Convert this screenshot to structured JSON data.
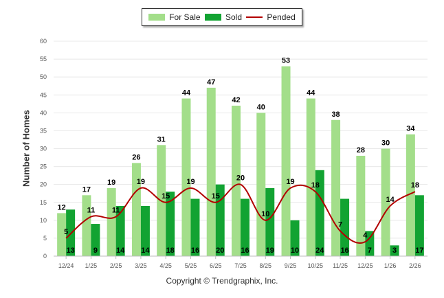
{
  "legend": {
    "for_sale": "For Sale",
    "sold": "Sold",
    "pended": "Pended"
  },
  "footer": "Copyright © Trendgraphix, Inc.",
  "colors": {
    "for_sale": "#a3de8a",
    "sold": "#12a332",
    "pended": "#b20000",
    "grid": "#e8e8e8"
  },
  "chart_data": {
    "type": "bar",
    "ylabel": "Number of Homes",
    "ylim": [
      0,
      60
    ],
    "yticks": [
      0,
      5,
      10,
      15,
      20,
      25,
      30,
      35,
      40,
      45,
      50,
      55,
      60
    ],
    "categories": [
      "12/24",
      "1/25",
      "2/25",
      "3/25",
      "4/25",
      "5/25",
      "6/25",
      "7/25",
      "8/25",
      "9/25",
      "10/25",
      "11/25",
      "12/25",
      "1/26",
      "2/26"
    ],
    "series": [
      {
        "name": "For Sale",
        "type": "bar",
        "values": [
          12,
          17,
          19,
          26,
          31,
          44,
          47,
          42,
          40,
          53,
          44,
          38,
          28,
          30,
          34
        ]
      },
      {
        "name": "Sold",
        "type": "bar",
        "values": [
          13,
          9,
          14,
          14,
          18,
          16,
          20,
          16,
          19,
          10,
          24,
          16,
          7,
          3,
          17
        ]
      },
      {
        "name": "Pended",
        "type": "line",
        "values": [
          5,
          11,
          11,
          19,
          15,
          19,
          15,
          20,
          10,
          19,
          18,
          7,
          4,
          14,
          18
        ]
      }
    ],
    "grid": true,
    "legend_position": "top-center"
  }
}
